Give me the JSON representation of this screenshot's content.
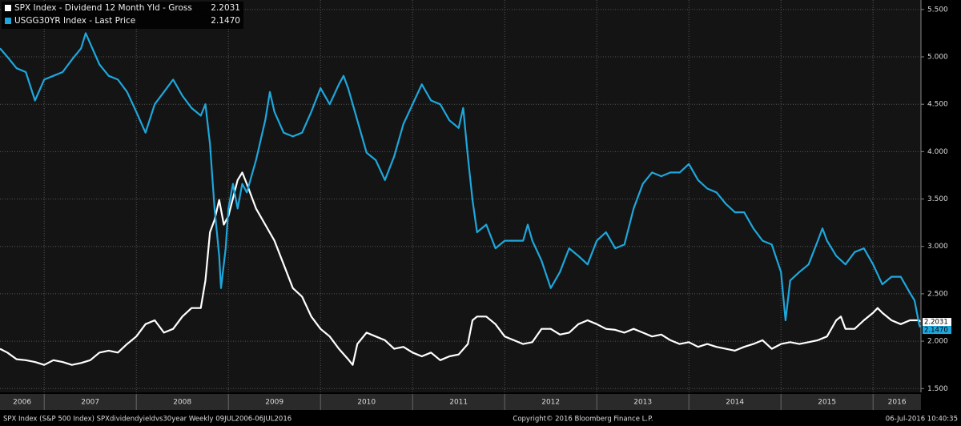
{
  "chart_data": {
    "type": "line",
    "xlim": [
      2006.52,
      2016.52
    ],
    "xticks": [
      {
        "value": 2006,
        "label": "2006"
      },
      {
        "value": 2007,
        "label": "2007"
      },
      {
        "value": 2008,
        "label": "2008"
      },
      {
        "value": 2009,
        "label": "2009"
      },
      {
        "value": 2010,
        "label": "2010"
      },
      {
        "value": 2011,
        "label": "2011"
      },
      {
        "value": 2012,
        "label": "2012"
      },
      {
        "value": 2013,
        "label": "2013"
      },
      {
        "value": 2014,
        "label": "2014"
      },
      {
        "value": 2015,
        "label": "2015"
      },
      {
        "value": 2016,
        "label": "2016"
      }
    ],
    "ylim": [
      1.46,
      5.6
    ],
    "yticks": [
      {
        "value": 1.5,
        "label": "1.500"
      },
      {
        "value": 2,
        "label": "2.000"
      },
      {
        "value": 2.5,
        "label": "2.500"
      },
      {
        "value": 3,
        "label": "3.000"
      },
      {
        "value": 3.5,
        "label": "3.500"
      },
      {
        "value": 4,
        "label": "4.000"
      },
      {
        "value": 4.5,
        "label": "4.500"
      },
      {
        "value": 5,
        "label": "5.000"
      },
      {
        "value": 5.5,
        "label": "5.500"
      }
    ],
    "grid": true,
    "series": [
      {
        "name": "SPX Index - Dividend 12 Month Yld - Gross",
        "legend_value": "2.2031",
        "color": "#ffffff",
        "x": [
          2006.52,
          2006.6,
          2006.7,
          2006.8,
          2006.9,
          2007.0,
          2007.1,
          2007.2,
          2007.3,
          2007.4,
          2007.5,
          2007.6,
          2007.7,
          2007.8,
          2007.9,
          2008.0,
          2008.1,
          2008.2,
          2008.3,
          2008.4,
          2008.5,
          2008.6,
          2008.7,
          2008.75,
          2008.8,
          2008.85,
          2008.9,
          2008.95,
          2009.0,
          2009.1,
          2009.15,
          2009.2,
          2009.3,
          2009.4,
          2009.5,
          2009.6,
          2009.7,
          2009.8,
          2009.9,
          2010.0,
          2010.1,
          2010.2,
          2010.3,
          2010.35,
          2010.4,
          2010.5,
          2010.6,
          2010.7,
          2010.8,
          2010.9,
          2011.0,
          2011.1,
          2011.2,
          2011.3,
          2011.4,
          2011.5,
          2011.6,
          2011.65,
          2011.7,
          2011.8,
          2011.9,
          2012.0,
          2012.1,
          2012.2,
          2012.3,
          2012.4,
          2012.5,
          2012.6,
          2012.7,
          2012.8,
          2012.9,
          2013.0,
          2013.1,
          2013.2,
          2013.3,
          2013.4,
          2013.5,
          2013.6,
          2013.7,
          2013.8,
          2013.9,
          2014.0,
          2014.1,
          2014.2,
          2014.3,
          2014.4,
          2014.5,
          2014.6,
          2014.7,
          2014.8,
          2014.9,
          2015.0,
          2015.1,
          2015.2,
          2015.3,
          2015.4,
          2015.5,
          2015.6,
          2015.65,
          2015.7,
          2015.8,
          2015.9,
          2016.0,
          2016.05,
          2016.1,
          2016.2,
          2016.3,
          2016.4,
          2016.5,
          2016.51
        ],
        "values": [
          1.92,
          1.88,
          1.81,
          1.8,
          1.78,
          1.75,
          1.8,
          1.78,
          1.75,
          1.77,
          1.8,
          1.88,
          1.9,
          1.88,
          1.97,
          2.05,
          2.18,
          2.22,
          2.09,
          2.13,
          2.26,
          2.35,
          2.35,
          2.64,
          3.15,
          3.28,
          3.49,
          3.23,
          3.32,
          3.7,
          3.78,
          3.66,
          3.4,
          3.23,
          3.06,
          2.81,
          2.56,
          2.47,
          2.26,
          2.13,
          2.05,
          1.92,
          1.81,
          1.75,
          1.97,
          2.09,
          2.05,
          2.01,
          1.92,
          1.94,
          1.88,
          1.84,
          1.88,
          1.8,
          1.84,
          1.86,
          1.97,
          2.22,
          2.26,
          2.26,
          2.18,
          2.05,
          2.01,
          1.97,
          1.99,
          2.13,
          2.13,
          2.07,
          2.09,
          2.18,
          2.22,
          2.18,
          2.13,
          2.12,
          2.09,
          2.13,
          2.09,
          2.05,
          2.07,
          2.01,
          1.97,
          1.99,
          1.94,
          1.97,
          1.94,
          1.92,
          1.9,
          1.94,
          1.97,
          2.01,
          1.92,
          1.97,
          1.99,
          1.97,
          1.99,
          2.01,
          2.05,
          2.22,
          2.26,
          2.13,
          2.13,
          2.22,
          2.3,
          2.35,
          2.3,
          2.22,
          2.18,
          2.22,
          2.22,
          2.2031
        ]
      },
      {
        "name": "USGG30YR Index - Last Price",
        "legend_value": "2.1470",
        "color": "#1ea7dc",
        "x": [
          2006.52,
          2006.6,
          2006.7,
          2006.8,
          2006.9,
          2007.0,
          2007.1,
          2007.2,
          2007.3,
          2007.4,
          2007.45,
          2007.5,
          2007.6,
          2007.7,
          2007.8,
          2007.9,
          2008.0,
          2008.1,
          2008.2,
          2008.3,
          2008.4,
          2008.5,
          2008.6,
          2008.7,
          2008.75,
          2008.8,
          2008.85,
          2008.9,
          2008.92,
          2008.97,
          2009.0,
          2009.05,
          2009.1,
          2009.15,
          2009.2,
          2009.3,
          2009.4,
          2009.45,
          2009.5,
          2009.6,
          2009.7,
          2009.8,
          2009.9,
          2010.0,
          2010.1,
          2010.2,
          2010.25,
          2010.3,
          2010.4,
          2010.5,
          2010.6,
          2010.7,
          2010.8,
          2010.9,
          2011.0,
          2011.1,
          2011.2,
          2011.3,
          2011.4,
          2011.5,
          2011.55,
          2011.6,
          2011.65,
          2011.7,
          2011.8,
          2011.9,
          2012.0,
          2012.1,
          2012.2,
          2012.25,
          2012.3,
          2012.4,
          2012.5,
          2012.6,
          2012.7,
          2012.8,
          2012.9,
          2013.0,
          2013.1,
          2013.2,
          2013.3,
          2013.4,
          2013.5,
          2013.6,
          2013.7,
          2013.8,
          2013.9,
          2014.0,
          2014.1,
          2014.2,
          2014.3,
          2014.4,
          2014.5,
          2014.6,
          2014.7,
          2014.8,
          2014.9,
          2015.0,
          2015.05,
          2015.1,
          2015.2,
          2015.3,
          2015.4,
          2015.45,
          2015.5,
          2015.6,
          2015.7,
          2015.8,
          2015.9,
          2016.0,
          2016.1,
          2016.2,
          2016.3,
          2016.4,
          2016.45,
          2016.5,
          2016.51
        ],
        "values": [
          5.09,
          5.0,
          4.88,
          4.84,
          4.54,
          4.76,
          4.8,
          4.84,
          4.97,
          5.09,
          5.25,
          5.14,
          4.92,
          4.8,
          4.76,
          4.63,
          4.42,
          4.2,
          4.5,
          4.63,
          4.76,
          4.59,
          4.46,
          4.38,
          4.5,
          4.08,
          3.4,
          2.9,
          2.56,
          2.98,
          3.4,
          3.66,
          3.4,
          3.66,
          3.57,
          3.91,
          4.33,
          4.63,
          4.42,
          4.2,
          4.16,
          4.2,
          4.42,
          4.67,
          4.5,
          4.71,
          4.8,
          4.67,
          4.33,
          3.99,
          3.91,
          3.7,
          3.95,
          4.29,
          4.5,
          4.71,
          4.54,
          4.5,
          4.33,
          4.25,
          4.46,
          3.95,
          3.49,
          3.15,
          3.23,
          2.98,
          3.06,
          3.06,
          3.06,
          3.23,
          3.06,
          2.85,
          2.56,
          2.73,
          2.98,
          2.9,
          2.81,
          3.06,
          3.15,
          2.98,
          3.02,
          3.4,
          3.66,
          3.78,
          3.74,
          3.78,
          3.78,
          3.87,
          3.7,
          3.61,
          3.57,
          3.45,
          3.36,
          3.36,
          3.19,
          3.06,
          3.02,
          2.73,
          2.22,
          2.64,
          2.73,
          2.81,
          3.06,
          3.19,
          3.06,
          2.9,
          2.81,
          2.94,
          2.98,
          2.81,
          2.6,
          2.68,
          2.68,
          2.51,
          2.43,
          2.18,
          2.147
        ]
      }
    ],
    "footer": {
      "left": "SPX Index (S&P 500 Index) SPXdividendyieldvs30year  Weekly 09JUL2006-06JUL2016",
      "center": "Copyright© 2016 Bloomberg Finance L.P.",
      "right": "06-Jul-2016 10:40:35"
    }
  }
}
